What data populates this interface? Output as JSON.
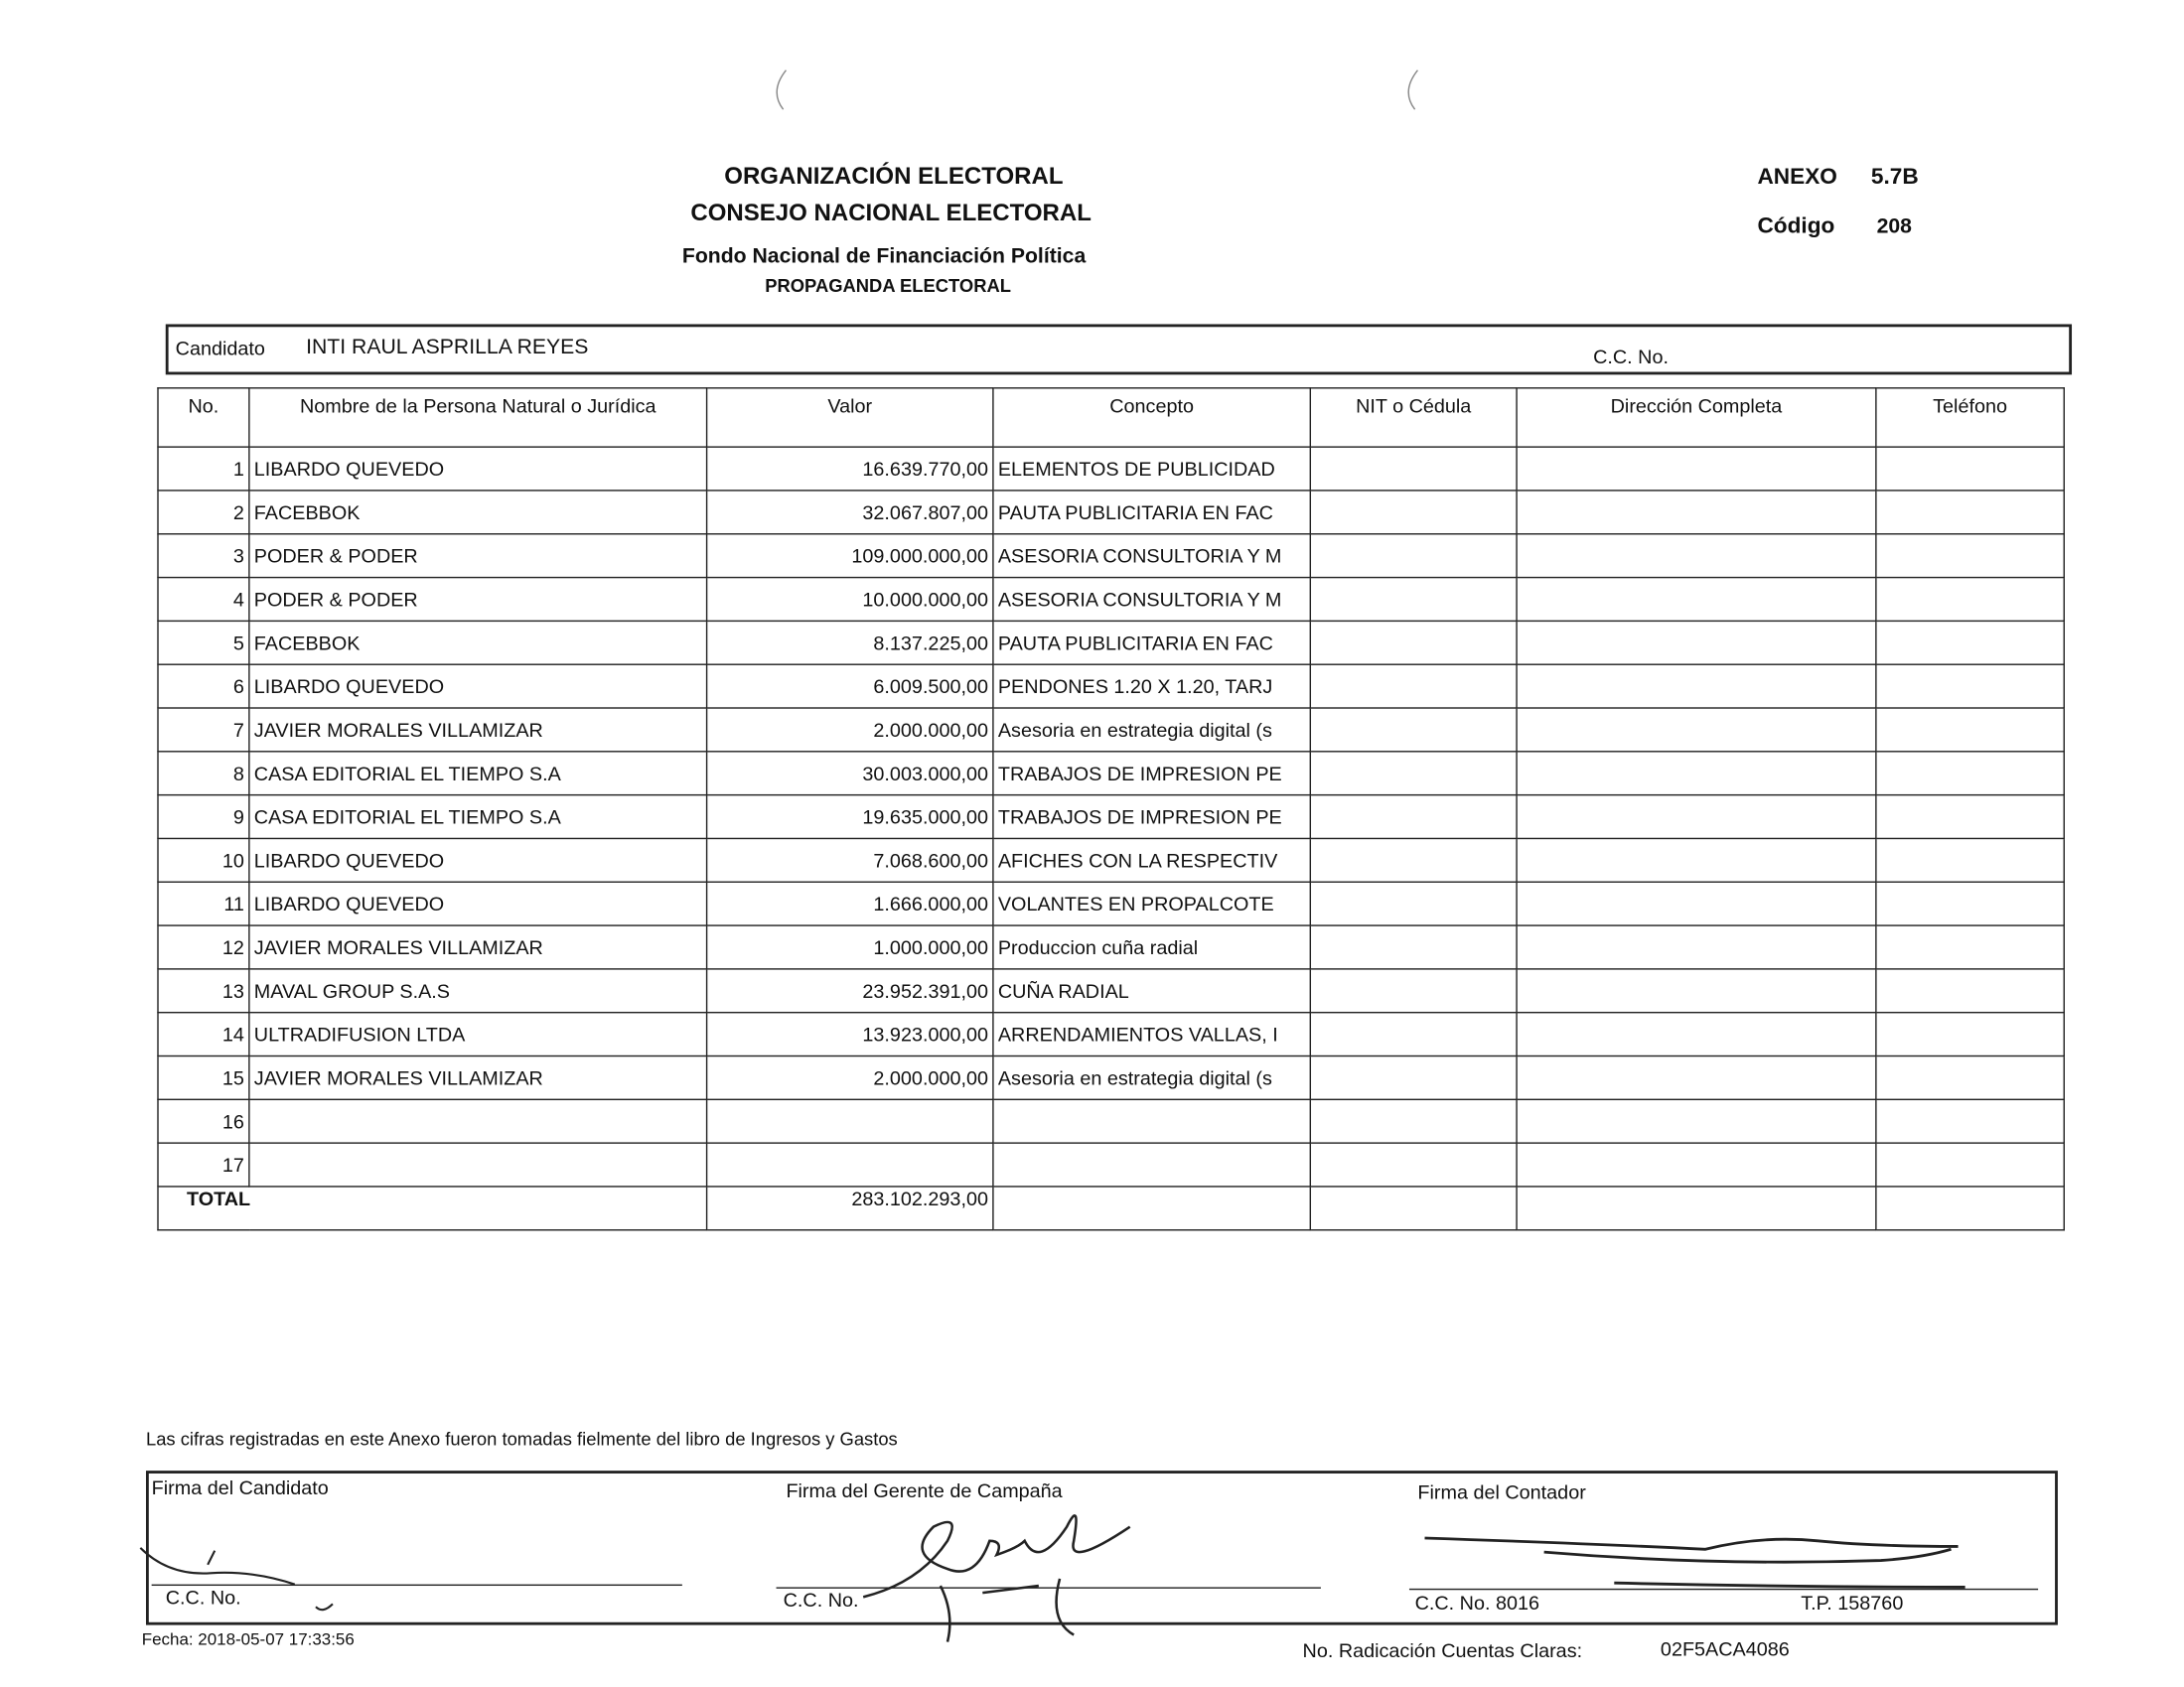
{
  "header": {
    "org": "ORGANIZACIÓN ELECTORAL",
    "council": "CONSEJO NACIONAL ELECTORAL",
    "fund": "Fondo Nacional de Financiación Política",
    "section": "PROPAGANDA ELECTORAL",
    "annex_label": "ANEXO",
    "annex": "5.7B",
    "code_label": "Código",
    "code": "208"
  },
  "candidate": {
    "label": "Candidato",
    "name": "INTI RAUL ASPRILLA REYES",
    "cc_label": "C.C. No."
  },
  "table": {
    "columns": [
      "No.",
      "Nombre de la Persona Natural o Jurídica",
      "Valor",
      "Concepto",
      "NIT o Cédula",
      "Dirección Completa",
      "Teléfono"
    ],
    "rows": [
      {
        "no": "1",
        "name": "LIBARDO QUEVEDO",
        "value": "16.639.770,00",
        "concept": "ELEMENTOS DE PUBLICIDAD"
      },
      {
        "no": "2",
        "name": "FACEBBOK",
        "value": "32.067.807,00",
        "concept": "PAUTA PUBLICITARIA EN FAC"
      },
      {
        "no": "3",
        "name": "PODER & PODER",
        "value": "109.000.000,00",
        "concept": "ASESORIA CONSULTORIA Y M"
      },
      {
        "no": "4",
        "name": "PODER & PODER",
        "value": "10.000.000,00",
        "concept": "ASESORIA CONSULTORIA Y M"
      },
      {
        "no": "5",
        "name": "FACEBBOK",
        "value": "8.137.225,00",
        "concept": "PAUTA PUBLICITARIA EN FAC"
      },
      {
        "no": "6",
        "name": "LIBARDO QUEVEDO",
        "value": "6.009.500,00",
        "concept": "PENDONES 1.20 X 1.20, TARJ"
      },
      {
        "no": "7",
        "name": "JAVIER MORALES VILLAMIZAR",
        "value": "2.000.000,00",
        "concept": "Asesoria en estrategia digital (s"
      },
      {
        "no": "8",
        "name": "CASA EDITORIAL EL TIEMPO S.A",
        "value": "30.003.000,00",
        "concept": "TRABAJOS DE IMPRESION PE"
      },
      {
        "no": "9",
        "name": "CASA EDITORIAL EL TIEMPO S.A",
        "value": "19.635.000,00",
        "concept": "TRABAJOS DE IMPRESION PE"
      },
      {
        "no": "10",
        "name": "LIBARDO QUEVEDO",
        "value": "7.068.600,00",
        "concept": "AFICHES CON LA RESPECTIV"
      },
      {
        "no": "11",
        "name": "LIBARDO QUEVEDO",
        "value": "1.666.000,00",
        "concept": "VOLANTES EN PROPALCOTE"
      },
      {
        "no": "12",
        "name": "JAVIER MORALES VILLAMIZAR",
        "value": "1.000.000,00",
        "concept": "Produccion cuña radial"
      },
      {
        "no": "13",
        "name": "MAVAL GROUP S.A.S",
        "value": "23.952.391,00",
        "concept": "CUÑA RADIAL"
      },
      {
        "no": "14",
        "name": "ULTRADIFUSION LTDA",
        "value": "13.923.000,00",
        "concept": "ARRENDAMIENTOS VALLAS, I"
      },
      {
        "no": "15",
        "name": "JAVIER MORALES VILLAMIZAR",
        "value": "2.000.000,00",
        "concept": "Asesoria en estrategia digital (s"
      },
      {
        "no": "16"
      },
      {
        "no": "17"
      }
    ],
    "total_label": "TOTAL",
    "total": "283.102.293,00"
  },
  "footer": {
    "note": "Las cifras registradas en este Anexo fueron tomadas fielmente del libro de Ingresos y Gastos",
    "sign_candidate": "Firma del Candidato",
    "sign_manager": "Firma del Gerente de Campaña",
    "sign_accountant": "Firma del Contador",
    "cc_candidate": "C.C. No.",
    "cc_manager": "C.C. No.",
    "cc_accountant": "C.C. No. 8016",
    "tp": "T.P. 158760",
    "date": "Fecha:  2018-05-07 17:33:56",
    "radication_label": "No. Radicación Cuentas Claras:",
    "radication": "02F5ACA4086"
  }
}
